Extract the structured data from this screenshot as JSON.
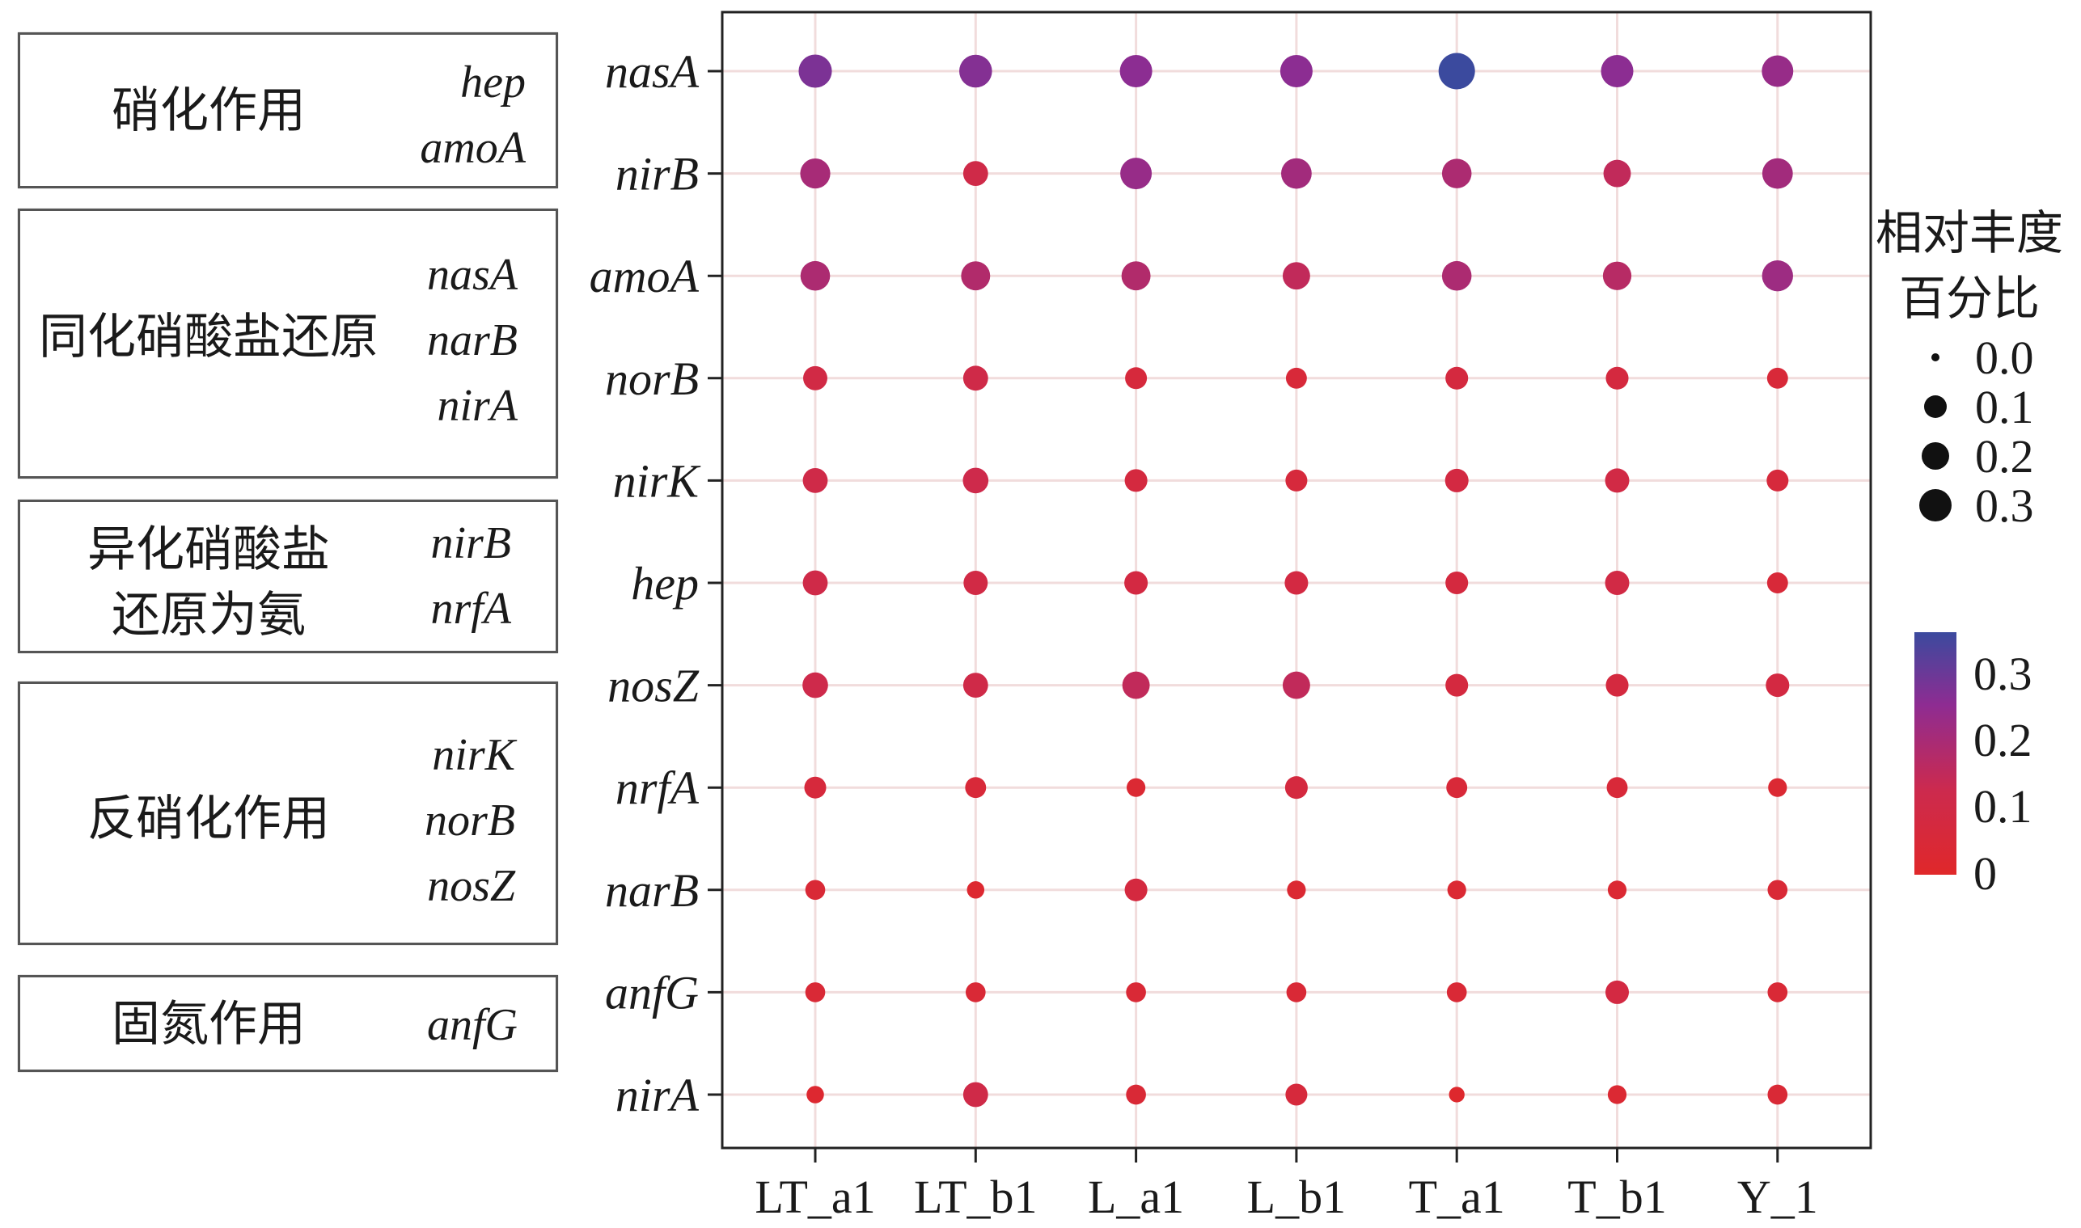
{
  "groups": [
    {
      "name_lines": [
        "硝化作用"
      ],
      "genes": [
        "hep",
        "amoA"
      ]
    },
    {
      "name_lines": [
        "同化硝酸盐还原"
      ],
      "genes": [
        "nasA",
        "narB",
        "nirA"
      ]
    },
    {
      "name_lines": [
        "异化硝酸盐",
        "还原为氨"
      ],
      "genes": [
        "nirB",
        "nrfA"
      ]
    },
    {
      "name_lines": [
        "反硝化作用"
      ],
      "genes": [
        "nirK",
        "norB",
        "nosZ"
      ]
    },
    {
      "name_lines": [
        "固氮作用"
      ],
      "genes": [
        "anfG"
      ]
    }
  ],
  "legend": {
    "size_title_lines": [
      "相对丰度",
      "百分比"
    ],
    "size_levels": [
      "0.0",
      "0.1",
      "0.2",
      "0.3"
    ],
    "color_ticks": [
      "0.3",
      "0.2",
      "0.1",
      "0"
    ],
    "colors": {
      "low": "#e0282a",
      "mid_low": "#cc2a4e",
      "mid_high": "#8e2c92",
      "high": "#3b4a9e"
    }
  },
  "chart_data": {
    "type": "scatter",
    "subtype": "bubble-matrix",
    "title": "",
    "xlabel": "",
    "ylabel": "",
    "x": [
      "LT_a1",
      "LT_b1",
      "L_a1",
      "L_b1",
      "T_a1",
      "T_b1",
      "Y_1"
    ],
    "y": [
      "nasA",
      "nirB",
      "amoA",
      "norB",
      "nirK",
      "hep",
      "nosZ",
      "nrfA",
      "narB",
      "anfG",
      "nirA"
    ],
    "values": [
      [
        0.26,
        0.25,
        0.24,
        0.24,
        0.34,
        0.24,
        0.22
      ],
      [
        0.19,
        0.1,
        0.22,
        0.2,
        0.18,
        0.14,
        0.2
      ],
      [
        0.18,
        0.17,
        0.17,
        0.14,
        0.18,
        0.16,
        0.21
      ],
      [
        0.09,
        0.1,
        0.06,
        0.05,
        0.07,
        0.07,
        0.05
      ],
      [
        0.1,
        0.11,
        0.07,
        0.06,
        0.08,
        0.09,
        0.06
      ],
      [
        0.1,
        0.09,
        0.08,
        0.08,
        0.07,
        0.09,
        0.05
      ],
      [
        0.11,
        0.1,
        0.14,
        0.14,
        0.07,
        0.07,
        0.08
      ],
      [
        0.06,
        0.05,
        0.03,
        0.07,
        0.05,
        0.05,
        0.03
      ],
      [
        0.04,
        0.02,
        0.07,
        0.03,
        0.03,
        0.03,
        0.04
      ],
      [
        0.04,
        0.04,
        0.04,
        0.04,
        0.04,
        0.08,
        0.04
      ],
      [
        0.02,
        0.1,
        0.04,
        0.06,
        0.01,
        0.03,
        0.04
      ]
    ],
    "size_legend": [
      0.0,
      0.1,
      0.2,
      0.3
    ],
    "color_range": [
      0,
      0.34
    ],
    "grid": true,
    "legend_position": "right"
  }
}
